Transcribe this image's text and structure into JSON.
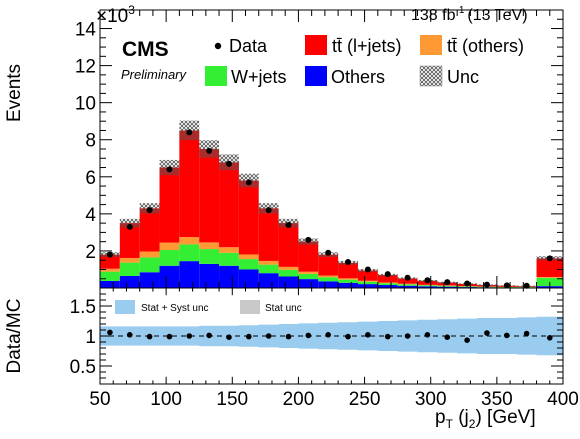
{
  "header": {
    "experiment": "CMS",
    "status": "Preliminary",
    "lumi": "138 fb",
    "lumi_sup": "-1",
    "energy": "(13 TeV)",
    "multiplier": "×10",
    "multiplier_exp": "3"
  },
  "legend": {
    "data": "Data",
    "ttlj": "tt̄ (l+jets)",
    "ttoth": "tt̄ (others)",
    "wjets": "W+jets",
    "others": "Others",
    "unc": "Unc"
  },
  "ratio_legend": {
    "stat_syst": "Stat + Syst unc",
    "stat": "Stat unc"
  },
  "colors": {
    "ttlj": "#ff0000",
    "ttoth": "#ff9933",
    "wjets": "#33ee33",
    "others": "#0000ff",
    "band": "#99ccee",
    "stat_band": "#c8c8c8"
  },
  "chart_data": [
    {
      "type": "bar",
      "stacked": true,
      "ylabel": "Events",
      "y_multiplier": "×10³",
      "xlim": [
        50,
        400
      ],
      "ylim": [
        0,
        15
      ],
      "yticks": [
        2,
        4,
        6,
        8,
        10,
        12,
        14
      ],
      "bin_edges": [
        50,
        65,
        80,
        95,
        110,
        125,
        140,
        155,
        170,
        185,
        200,
        215,
        230,
        245,
        260,
        275,
        290,
        305,
        320,
        335,
        350,
        365,
        380,
        400
      ],
      "series": [
        {
          "name": "Others",
          "values": [
            0.38,
            0.65,
            0.85,
            1.2,
            1.45,
            1.3,
            1.2,
            1.0,
            0.8,
            0.62,
            0.48,
            0.36,
            0.28,
            0.21,
            0.16,
            0.12,
            0.09,
            0.07,
            0.05,
            0.04,
            0.03,
            0.03,
            0.1
          ]
        },
        {
          "name": "W+jets",
          "values": [
            0.5,
            0.72,
            0.8,
            0.85,
            0.9,
            0.8,
            0.7,
            0.56,
            0.46,
            0.36,
            0.28,
            0.22,
            0.17,
            0.13,
            0.1,
            0.08,
            0.06,
            0.05,
            0.04,
            0.03,
            0.02,
            0.02,
            0.45
          ]
        },
        {
          "name": "tt̄ (others)",
          "values": [
            0.16,
            0.25,
            0.32,
            0.4,
            0.4,
            0.36,
            0.3,
            0.25,
            0.2,
            0.16,
            0.12,
            0.09,
            0.07,
            0.05,
            0.04,
            0.03,
            0.02,
            0.02,
            0.01,
            0.01,
            0.01,
            0.01,
            0.04
          ]
        },
        {
          "name": "tt̄ (l+jets)",
          "values": [
            0.76,
            1.88,
            2.33,
            4.05,
            5.75,
            5.04,
            4.58,
            3.99,
            2.84,
            2.36,
            1.62,
            1.13,
            0.84,
            0.56,
            0.4,
            0.29,
            0.22,
            0.16,
            0.12,
            0.08,
            0.06,
            0.04,
            1.01
          ]
        }
      ],
      "data_points": [
        1.8,
        3.3,
        4.2,
        6.4,
        8.4,
        7.4,
        6.7,
        5.7,
        4.2,
        3.4,
        2.6,
        1.9,
        1.4,
        1.0,
        0.75,
        0.55,
        0.42,
        0.32,
        0.24,
        0.18,
        0.14,
        0.12,
        1.6
      ]
    },
    {
      "type": "scatter",
      "xlabel": "p_T (j_2) [GeV]",
      "ylabel": "Data/MC",
      "xlim": [
        50,
        400
      ],
      "ylim": [
        0.2,
        1.8
      ],
      "yticks": [
        0.5,
        1,
        1.5
      ],
      "xticks": [
        50,
        100,
        150,
        200,
        250,
        300,
        350,
        400
      ],
      "x": [
        57.5,
        72.5,
        87.5,
        102.5,
        117.5,
        132.5,
        147.5,
        162.5,
        177.5,
        192.5,
        207.5,
        222.5,
        237.5,
        252.5,
        267.5,
        282.5,
        297.5,
        312.5,
        327.5,
        342.5,
        357.5,
        372.5,
        390
      ],
      "ratio": [
        1.06,
        1.02,
        0.99,
        0.99,
        1.0,
        1.01,
        0.98,
        0.99,
        1.0,
        0.99,
        1.01,
        1.02,
        0.99,
        1.02,
        0.99,
        1.0,
        1.02,
        0.98,
        0.93,
        1.05,
        1.01,
        1.04,
        0.97
      ],
      "syst_band": [
        0.16,
        0.16,
        0.16,
        0.16,
        0.16,
        0.17,
        0.17,
        0.18,
        0.19,
        0.2,
        0.21,
        0.22,
        0.23,
        0.24,
        0.25,
        0.26,
        0.27,
        0.28,
        0.29,
        0.3,
        0.3,
        0.31,
        0.32
      ]
    }
  ]
}
